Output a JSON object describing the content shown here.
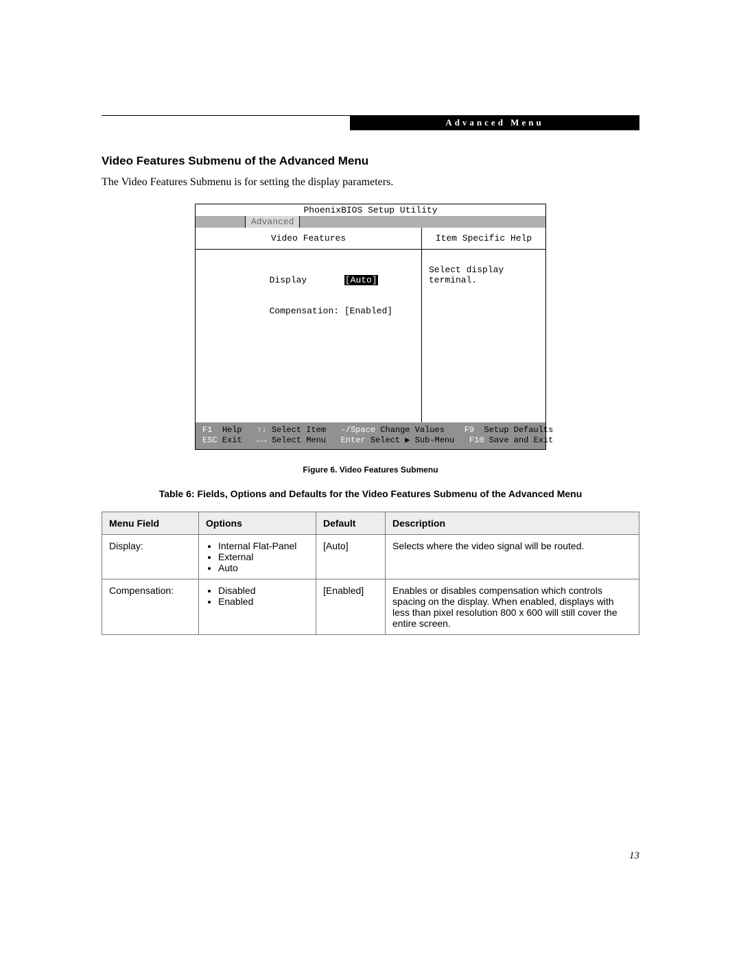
{
  "header": {
    "label": "Advanced Menu"
  },
  "section": {
    "title": "Video Features Submenu of the Advanced Menu",
    "intro": "The Video Features Submenu is for setting the display parameters."
  },
  "bios": {
    "title": "PhoenixBIOS Setup Utility",
    "tab": "Advanced",
    "left_header": "Video Features",
    "right_header": "Item Specific Help",
    "items": [
      {
        "label": "Display",
        "value": "[Auto]",
        "highlight": true
      },
      {
        "label": "Compensation:",
        "value": "[Enabled]",
        "highlight": false
      }
    ],
    "help_text": "Select display terminal.",
    "footer": {
      "f1": "F1",
      "help": "Help",
      "updn": "↑↓",
      "select_item": "Select Item",
      "minus": "-/Space",
      "change_values": "Change Values",
      "f9": "F9",
      "setup_defaults": "Setup Defaults",
      "esc": "ESC",
      "exit": "Exit",
      "lr": "←→",
      "select_menu": "Select Menu",
      "enter": "Enter",
      "sub_menu": "Select ▶ Sub-Menu",
      "f10": "F10",
      "save_exit": "Save and Exit"
    }
  },
  "figure_caption": "Figure 6.  Video Features Submenu",
  "table_caption": "Table 6: Fields, Options and Defaults for the Video Features Submenu of the Advanced Menu",
  "table": {
    "headers": {
      "c1": "Menu Field",
      "c2": "Options",
      "c3": "Default",
      "c4": "Description"
    },
    "rows": [
      {
        "field": "Display:",
        "options": [
          "Internal Flat-Panel",
          "External",
          "Auto"
        ],
        "default": "[Auto]",
        "desc": "Selects where the video signal will be routed."
      },
      {
        "field": "Compensation:",
        "options": [
          "Disabled",
          "Enabled"
        ],
        "default": "[Enabled]",
        "desc": "Enables or disables compensation which controls spacing on the display. When enabled, displays with less than pixel resolution 800 x 600 will still cover the entire screen."
      }
    ]
  },
  "page_number": "13"
}
